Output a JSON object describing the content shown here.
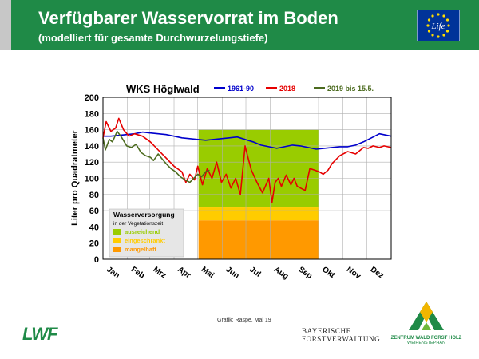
{
  "header": {
    "title": "Verfügbarer Wasservorrat im Boden",
    "subtitle": "(modelliert für gesamte Durchwurzelungstiefe)",
    "eu_logo_text": "Life"
  },
  "chart_data": {
    "type": "line",
    "title": "WKS Höglwald",
    "ylabel": "Liter pro Quadratmeter",
    "xlabel": "",
    "ylim": [
      0,
      200
    ],
    "yticks": [
      0,
      20,
      40,
      60,
      80,
      100,
      120,
      140,
      160,
      180,
      200
    ],
    "xlim": [
      0,
      365
    ],
    "month_labels": [
      "Jan",
      "Feb",
      "Mrz",
      "Apr",
      "Mai",
      "Jun",
      "Jul",
      "Aug",
      "Sep",
      "Okt",
      "Nov",
      "Dez"
    ],
    "grid": true,
    "series": [
      {
        "name": "1961-90",
        "color": "#0000cc",
        "x": [
          0,
          10,
          20,
          30,
          40,
          50,
          60,
          70,
          80,
          90,
          100,
          110,
          120,
          130,
          140,
          150,
          160,
          170,
          180,
          190,
          200,
          210,
          220,
          230,
          240,
          250,
          260,
          270,
          280,
          290,
          300,
          310,
          320,
          330,
          340,
          350,
          360,
          365
        ],
        "y": [
          152,
          152,
          153,
          154,
          155,
          157,
          156,
          155,
          154,
          152,
          150,
          149,
          148,
          147,
          148,
          149,
          150,
          151,
          148,
          145,
          141,
          139,
          137,
          139,
          141,
          140,
          138,
          136,
          137,
          138,
          139,
          139,
          141,
          145,
          150,
          155,
          153,
          152
        ]
      },
      {
        "name": "2018",
        "color": "#e60000",
        "x": [
          0,
          4,
          10,
          16,
          20,
          26,
          33,
          40,
          50,
          60,
          70,
          80,
          90,
          100,
          105,
          110,
          116,
          120,
          126,
          132,
          138,
          144,
          150,
          156,
          162,
          168,
          174,
          180,
          183,
          188,
          195,
          202,
          210,
          214,
          218,
          222,
          226,
          232,
          238,
          242,
          246,
          250,
          256,
          262,
          268,
          274,
          279,
          285,
          290,
          300,
          310,
          320,
          330,
          336,
          342,
          350,
          356,
          365
        ],
        "y": [
          150,
          170,
          158,
          162,
          174,
          160,
          152,
          155,
          152,
          145,
          135,
          125,
          115,
          108,
          95,
          105,
          98,
          115,
          92,
          112,
          100,
          120,
          95,
          105,
          88,
          100,
          80,
          140,
          128,
          110,
          95,
          82,
          100,
          70,
          95,
          100,
          90,
          104,
          92,
          100,
          90,
          88,
          85,
          112,
          110,
          108,
          105,
          110,
          118,
          128,
          133,
          130,
          138,
          137,
          140,
          138,
          140,
          138
        ]
      },
      {
        "name": "2019 bis 15.5.",
        "color": "#4c6b1f",
        "x": [
          0,
          3,
          8,
          12,
          18,
          24,
          30,
          36,
          42,
          48,
          54,
          60,
          64,
          70,
          74,
          80,
          86,
          92,
          98,
          104,
          110,
          115,
          120,
          125,
          130,
          135
        ],
        "y": [
          150,
          135,
          148,
          145,
          158,
          150,
          140,
          138,
          142,
          132,
          128,
          126,
          122,
          130,
          125,
          118,
          112,
          108,
          102,
          98,
          95,
          100,
          105,
          102,
          108,
          110
        ]
      }
    ],
    "vegetation_period": {
      "start": 121,
      "end": 273,
      "upper": 160
    },
    "zones": [
      {
        "label": "ausreichend",
        "color": "#99cc00",
        "from": 64,
        "to": 160
      },
      {
        "label": "eingeschränkt",
        "color": "#ffcc00",
        "from": 48,
        "to": 64
      },
      {
        "label": "mangelhaft",
        "color": "#ff9900",
        "from": 0,
        "to": 48
      }
    ],
    "legend_box": {
      "title": "Wasserversorgung",
      "subtitle": "in der Vegetationszeit"
    }
  },
  "footer": {
    "credit": "Grafik: Raspe, Mai 19",
    "lwf": "LWF",
    "bay_line1": "BAYERISCHE",
    "bay_line2": "FORSTVERWALTUNG",
    "zentrum_line1": "ZENTRUM WALD FORST HOLZ",
    "zentrum_line2": "WEIHENSTEPHAN"
  },
  "colors": {
    "header": "#1f8a47",
    "plot_bg": "#ffffff",
    "grid": "#b0b0b0"
  }
}
